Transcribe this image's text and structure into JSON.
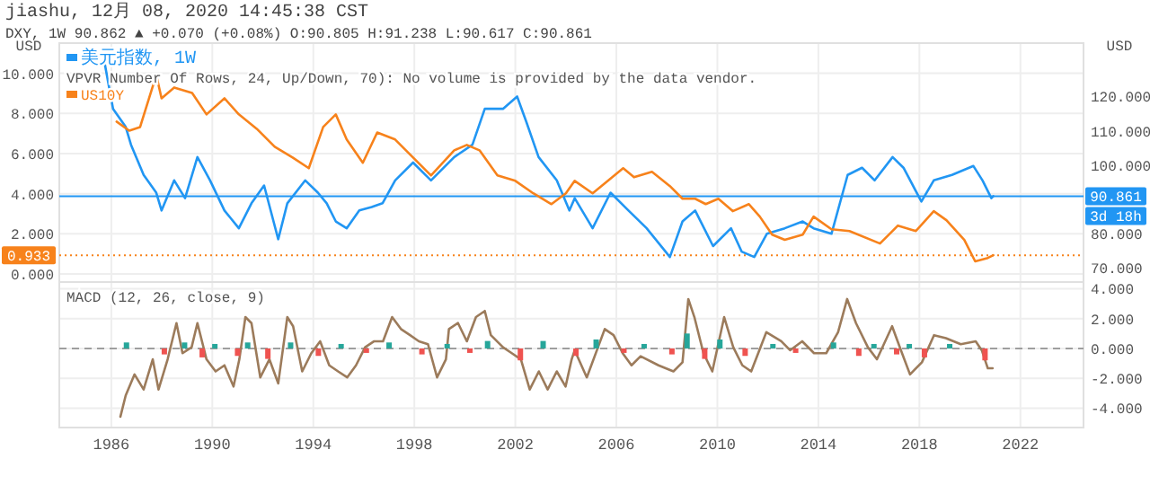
{
  "chart_data": [
    {
      "type": "line",
      "title": "jiashu, 12月 08, 2020 14:45:38 CST",
      "subtitle": "DXY, 1W 90.862 ▲ +0.070 (+0.08%) O:90.805 H:91.238 L:90.617 C:90.861",
      "ylabel": "USD",
      "y2label": "USD",
      "xlim": [
        1983.94,
        2024.5
      ],
      "xticks": [
        1986,
        1990,
        1994,
        1998,
        2002,
        2006,
        2010,
        2014,
        2018,
        2022
      ],
      "ylim": [
        -0.4,
        11.5
      ],
      "yticks": [
        {
          "value": 0,
          "label": "0.000"
        },
        {
          "value": 2,
          "label": "2.000"
        },
        {
          "value": 4,
          "label": "4.000"
        },
        {
          "value": 6,
          "label": "6.000"
        },
        {
          "value": 8,
          "label": "8.000"
        },
        {
          "value": 10,
          "label": "10.000"
        }
      ],
      "y2lim": [
        65.8,
        135.6
      ],
      "y2ticks": [
        {
          "value": 70,
          "label": "70.000"
        },
        {
          "value": 80,
          "label": "80.000"
        },
        {
          "value": 100,
          "label": "100.000"
        },
        {
          "value": 110,
          "label": "110.000"
        },
        {
          "value": 120,
          "label": "120.000"
        }
      ],
      "tick_labels": "y",
      "grid": true,
      "legend": "top left",
      "annotations": [
        "VPVR Number Of Rows, 24, Up/Down, 70): No volume is provided by the data vendor."
      ],
      "ref_lines": [
        {
          "axis": "y2",
          "value": 90.861,
          "label": "90.861\n3d 18h",
          "color": "#2196f3",
          "line_style": "solid"
        },
        {
          "axis": "y",
          "value": 0.933,
          "label": "0.933",
          "color": "#f7821b",
          "line_style": "dotted"
        }
      ],
      "series": [
        {
          "name": "美元指数, 1W",
          "color": "#2196f3",
          "axis": "y2",
          "x": [
            1985.72,
            1986.07,
            1986.57,
            1986.78,
            1987.28,
            1987.78,
            1987.99,
            1988.49,
            1988.92,
            1989.41,
            1989.91,
            1990.48,
            1991.05,
            1991.55,
            1992.05,
            1992.61,
            1992.97,
            1993.68,
            1994.18,
            1994.53,
            1994.89,
            1995.32,
            1995.82,
            1996.31,
            1996.74,
            1997.24,
            1997.95,
            1998.66,
            1999.58,
            2000.3,
            2000.79,
            2001.51,
            2002.07,
            2002.43,
            2002.92,
            2003.64,
            2004.14,
            2004.35,
            2005.06,
            2005.77,
            2006.48,
            2007.2,
            2008.12,
            2008.62,
            2009.12,
            2009.83,
            2010.54,
            2010.96,
            2011.46,
            2011.96,
            2012.67,
            2013.38,
            2013.81,
            2014.52,
            2015.16,
            2015.73,
            2016.23,
            2016.94,
            2017.37,
            2018.08,
            2018.57,
            2019.29,
            2020.14,
            2020.5,
            2020.85,
            2020.93
          ],
          "values": [
            130.4,
            116.4,
            111.1,
            105.9,
            97.1,
            91.9,
            86.7,
            95.5,
            90.3,
            102.3,
            95.5,
            86.7,
            81.5,
            88.8,
            94.0,
            78.3,
            88.8,
            95.5,
            91.9,
            88.8,
            83.5,
            81.5,
            86.7,
            87.7,
            88.8,
            95.5,
            100.7,
            95.5,
            102.3,
            105.9,
            116.4,
            116.4,
            120.0,
            112.7,
            102.3,
            95.5,
            86.7,
            90.3,
            81.5,
            91.9,
            86.7,
            81.5,
            73.1,
            83.5,
            86.7,
            76.3,
            81.5,
            74.7,
            73.1,
            79.9,
            81.5,
            83.5,
            81.5,
            79.9,
            97.1,
            99.2,
            95.5,
            102.3,
            99.2,
            89.3,
            95.5,
            97.1,
            99.7,
            95.5,
            90.3,
            90.9
          ]
        },
        {
          "name": "US10Y",
          "color": "#f7821b",
          "x": [
            1986.21,
            1986.71,
            1987.14,
            1987.78,
            1987.99,
            1988.49,
            1989.2,
            1989.77,
            1990.48,
            1991.05,
            1991.76,
            1992.47,
            1993.18,
            1993.82,
            1994.39,
            1994.89,
            1995.32,
            1995.96,
            1996.53,
            1997.24,
            1997.95,
            1998.66,
            1999.58,
            2000.08,
            2000.58,
            2001.29,
            2002.0,
            2002.71,
            2003.43,
            2004.0,
            2004.35,
            2005.06,
            2006.27,
            2006.7,
            2007.41,
            2008.12,
            2008.62,
            2009.12,
            2009.54,
            2010.04,
            2010.61,
            2011.25,
            2011.68,
            2012.17,
            2012.67,
            2013.38,
            2013.81,
            2014.52,
            2015.23,
            2016.44,
            2017.15,
            2017.86,
            2018.57,
            2019.07,
            2019.78,
            2020.21,
            2020.71,
            2020.93
          ],
          "values": [
            7.59,
            7.14,
            7.32,
            9.91,
            8.75,
            9.29,
            9.02,
            7.95,
            8.75,
            7.95,
            7.23,
            6.34,
            5.8,
            5.27,
            7.32,
            7.95,
            6.7,
            5.54,
            7.05,
            6.7,
            5.8,
            4.91,
            6.16,
            6.43,
            6.16,
            4.91,
            4.64,
            4.02,
            3.48,
            4.02,
            4.64,
            4.02,
            5.27,
            4.82,
            5.09,
            4.38,
            3.75,
            3.75,
            3.48,
            3.75,
            3.13,
            3.48,
            2.86,
            1.96,
            1.7,
            1.96,
            2.86,
            2.23,
            2.14,
            1.52,
            2.41,
            2.14,
            3.13,
            2.68,
            1.7,
            0.63,
            0.8,
            0.933
          ]
        }
      ]
    },
    {
      "type": "line",
      "title": "MACD (12, 26, close, 9)",
      "xlim": [
        1983.94,
        2024.5
      ],
      "xticks": [
        1986,
        1990,
        1994,
        1998,
        2002,
        2006,
        2010,
        2014,
        2018,
        2022
      ],
      "y2lim": [
        -5.3,
        4.45
      ],
      "y2ticks": [
        {
          "value": -4,
          "label": "-4.000"
        },
        {
          "value": -2,
          "label": "-2.000"
        },
        {
          "value": 0,
          "label": "0.000"
        },
        {
          "value": 2,
          "label": "2.000"
        },
        {
          "value": 4,
          "label": "4.000"
        }
      ],
      "grid": true,
      "ref_lines": [
        {
          "axis": "y2",
          "value": 0,
          "color": "#9e9e9e",
          "line_style": "dashed"
        }
      ],
      "series": [
        {
          "type": "bar",
          "color": "#26a69a",
          "axis": "y2",
          "x": [
            1986.6,
            1988.9,
            1990.1,
            1991.4,
            1993.1,
            1995.1,
            1997.0,
            1999.3,
            2000.9,
            2003.1,
            2005.2,
            2007.1,
            2008.8,
            2010.1,
            2012.2,
            2014.6,
            2016.2,
            2017.6,
            2019.2
          ],
          "values": [
            0.4,
            0.4,
            0.3,
            0.4,
            0.4,
            0.3,
            0.4,
            0.3,
            0.5,
            0.5,
            0.6,
            0.3,
            1.0,
            0.6,
            0.3,
            0.4,
            0.3,
            0.3,
            0.3
          ]
        },
        {
          "type": "bar",
          "color": "#ef5350",
          "axis": "y2",
          "x": [
            1988.1,
            1989.6,
            1991.0,
            1992.2,
            1994.2,
            1996.1,
            1998.3,
            2000.2,
            2002.2,
            2004.4,
            2006.3,
            2008.2,
            2009.5,
            2011.1,
            2013.1,
            2015.6,
            2017.1,
            2018.2,
            2020.6
          ],
          "values": [
            -0.4,
            -0.6,
            -0.5,
            -0.7,
            -0.5,
            -0.3,
            -0.4,
            -0.3,
            -0.8,
            -0.5,
            -0.3,
            -0.4,
            -0.7,
            -0.5,
            -0.3,
            -0.5,
            -0.4,
            -0.6,
            -0.8
          ]
        },
        {
          "type": "line",
          "color": "#9c7b5b",
          "axis": "y2",
          "x": [
            1986.36,
            1986.57,
            1986.92,
            1987.28,
            1987.64,
            1987.87,
            1988.23,
            1988.58,
            1988.82,
            1989.18,
            1989.41,
            1989.77,
            1990.13,
            1990.48,
            1990.84,
            1991.07,
            1991.31,
            1991.55,
            1991.9,
            1992.26,
            1992.61,
            1992.97,
            1993.2,
            1993.56,
            1993.92,
            1994.27,
            1994.63,
            1994.98,
            1995.34,
            1995.69,
            1996.05,
            1996.41,
            1996.76,
            1997.12,
            1997.47,
            1997.83,
            1998.18,
            1998.54,
            1998.9,
            1999.25,
            1999.37,
            1999.73,
            2000.08,
            2000.44,
            2000.79,
            2001.03,
            2001.51,
            2001.86,
            2002.22,
            2002.57,
            2002.93,
            2003.28,
            2003.64,
            2003.99,
            2004.23,
            2004.35,
            2004.83,
            2005.54,
            2005.89,
            2006.25,
            2006.6,
            2006.96,
            2007.67,
            2008.26,
            2008.62,
            2008.85,
            2009.09,
            2009.45,
            2009.8,
            2010.27,
            2010.63,
            2010.99,
            2011.34,
            2011.94,
            2012.53,
            2012.88,
            2013.36,
            2013.83,
            2014.31,
            2014.78,
            2015.14,
            2015.49,
            2015.96,
            2016.32,
            2016.92,
            2017.27,
            2017.63,
            2018.1,
            2018.58,
            2019.05,
            2019.64,
            2020.23,
            2020.47,
            2020.71,
            2020.9
          ],
          "values": [
            -4.57,
            -3.15,
            -1.74,
            -2.75,
            -0.73,
            -2.75,
            -0.73,
            1.7,
            -0.32,
            0.08,
            1.7,
            -0.73,
            -1.54,
            -1.13,
            -2.55,
            -0.73,
            2.1,
            1.7,
            -1.94,
            -0.73,
            -2.34,
            2.1,
            1.49,
            -1.54,
            -0.32,
            0.48,
            -1.13,
            -1.54,
            -1.94,
            -1.13,
            0.08,
            0.48,
            0.48,
            2.1,
            1.3,
            0.89,
            0.48,
            0.28,
            -1.94,
            -0.73,
            1.3,
            1.7,
            0.48,
            2.1,
            2.51,
            0.89,
            0.08,
            -0.32,
            -0.73,
            -2.75,
            -1.54,
            -2.75,
            -1.54,
            -2.55,
            -0.73,
            -0.12,
            -1.94,
            1.3,
            0.89,
            -0.32,
            -1.13,
            -0.52,
            -1.13,
            -1.54,
            -0.93,
            3.31,
            2.1,
            -0.32,
            -1.54,
            2.1,
            0.08,
            -1.13,
            -1.54,
            1.09,
            0.48,
            -0.12,
            0.48,
            -0.32,
            -0.32,
            1.09,
            3.31,
            1.7,
            0.08,
            -0.73,
            1.49,
            -0.12,
            -1.74,
            -0.93,
            0.89,
            0.69,
            0.28,
            0.48,
            -0.12,
            -1.33,
            -1.33
          ]
        }
      ]
    }
  ]
}
